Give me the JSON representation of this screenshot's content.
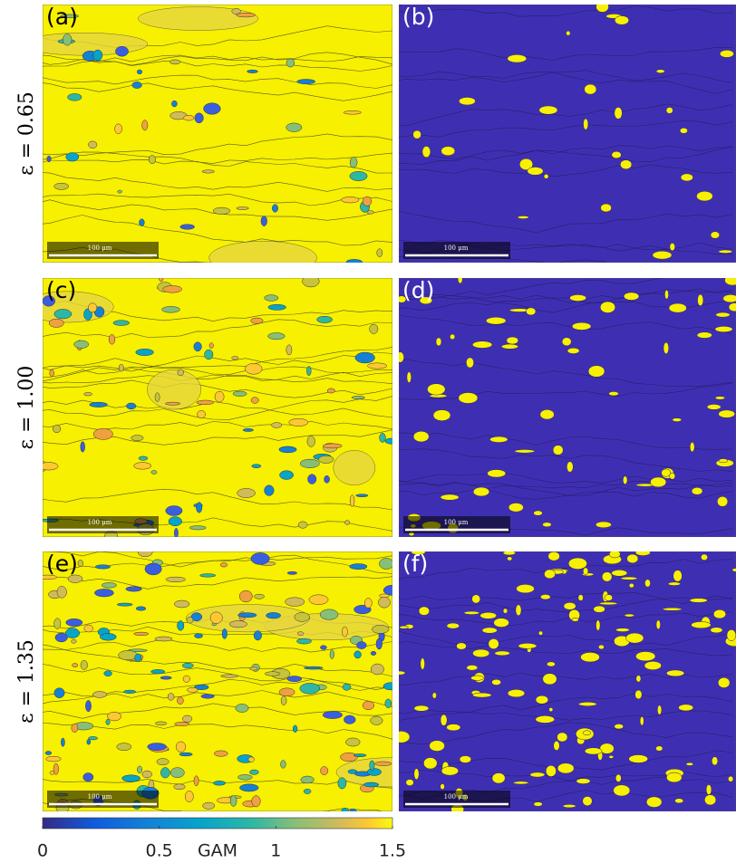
{
  "chart_data": {
    "type": "colorbar",
    "rows": [
      "ε = 0.65",
      "ε = 1.00",
      "ε = 1.35"
    ],
    "panels": [
      {
        "label": "(a)",
        "scale_bar": "100 μm"
      },
      {
        "label": "(b)",
        "scale_bar": "100 μm"
      },
      {
        "label": "(c)",
        "scale_bar": "100 μm"
      },
      {
        "label": "(d)",
        "scale_bar": "100 μm"
      },
      {
        "label": "(e)",
        "scale_bar": "100 μm"
      },
      {
        "label": "(f)",
        "scale_bar": "100 μm"
      }
    ],
    "xlabel": "GAM",
    "xlim": [
      0,
      1.5
    ],
    "xticks": [
      0,
      0.5,
      1,
      1.5
    ]
  }
}
